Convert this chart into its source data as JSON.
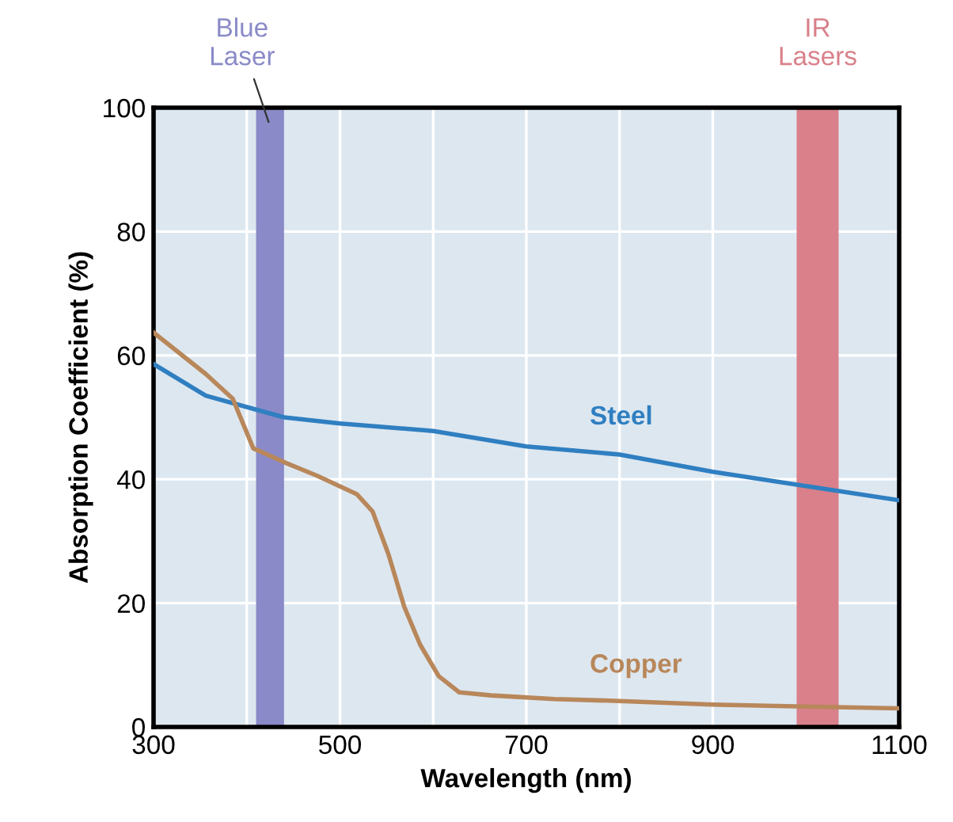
{
  "chart_data": {
    "type": "line",
    "xlabel": "Wavelength (nm)",
    "ylabel": "Absorption Coefficient (%)",
    "xlim": [
      300,
      1100
    ],
    "xticks": [
      300,
      500,
      700,
      900,
      1100
    ],
    "ylim": [
      0,
      100
    ],
    "yticks": [
      0,
      20,
      40,
      60,
      80,
      100
    ],
    "grid": true,
    "series": [
      {
        "name": "Steel",
        "color": "#2f7fc1",
        "x": [
          300,
          356,
          440,
          500,
          600,
          700,
          800,
          900,
          1000,
          1100
        ],
        "values": [
          58.6,
          53.5,
          50,
          49,
          47.8,
          45.3,
          44,
          41.2,
          38.9,
          36.6
        ]
      },
      {
        "name": "Copper",
        "color": "#b8875a",
        "x": [
          300,
          356,
          385,
          407,
          441,
          475,
          518,
          535,
          552,
          569,
          586,
          606,
          628,
          662,
          730,
          800,
          900,
          1000,
          1100
        ],
        "values": [
          63.7,
          57,
          53,
          45,
          42.7,
          40.6,
          37.6,
          34.8,
          27.9,
          19.4,
          13.3,
          8.2,
          5.6,
          5.1,
          4.5,
          4.2,
          3.6,
          3.3,
          3.0
        ]
      }
    ],
    "bands": [
      {
        "axis": "x",
        "from": 410,
        "to": 440,
        "label": "Blue\nLaser",
        "color": "#8a8ac8"
      },
      {
        "axis": "x",
        "from": 990,
        "to": 1035,
        "label": "IR\nLasers",
        "color": "#d9808a"
      }
    ]
  }
}
